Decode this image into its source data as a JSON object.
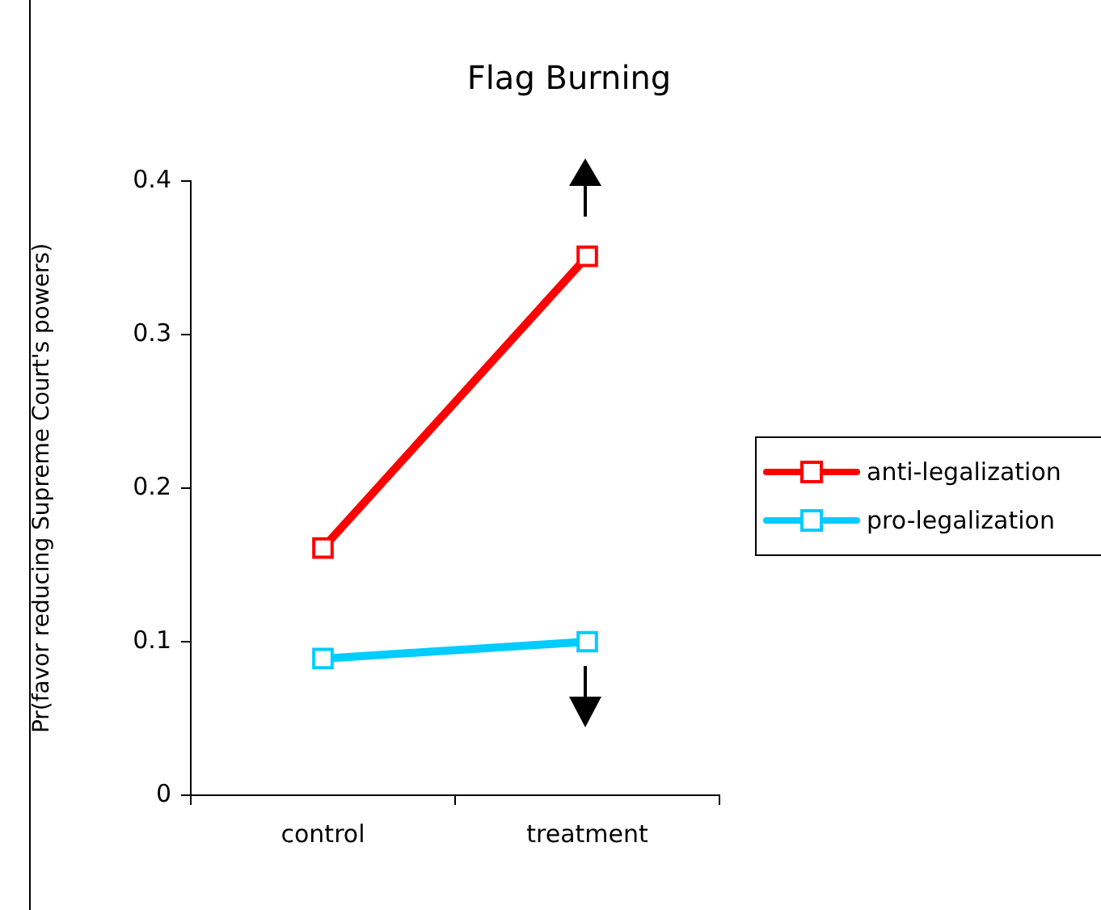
{
  "chart_data": {
    "type": "line",
    "title": "Flag Burning",
    "ylabel": "Pr(favor reducing Supreme Court's powers)",
    "categories": [
      "control",
      "treatment"
    ],
    "series": [
      {
        "name": "anti-legalization",
        "color": "#ff0000",
        "values": [
          0.161,
          0.351
        ]
      },
      {
        "name": "pro-legalization",
        "color": "#00ccff",
        "values": [
          0.089,
          0.1
        ]
      }
    ],
    "ylim": [
      0,
      0.4
    ],
    "yticks": [
      0,
      0.1,
      0.2,
      0.3,
      0.4
    ],
    "legend": "right",
    "marker": "square"
  }
}
